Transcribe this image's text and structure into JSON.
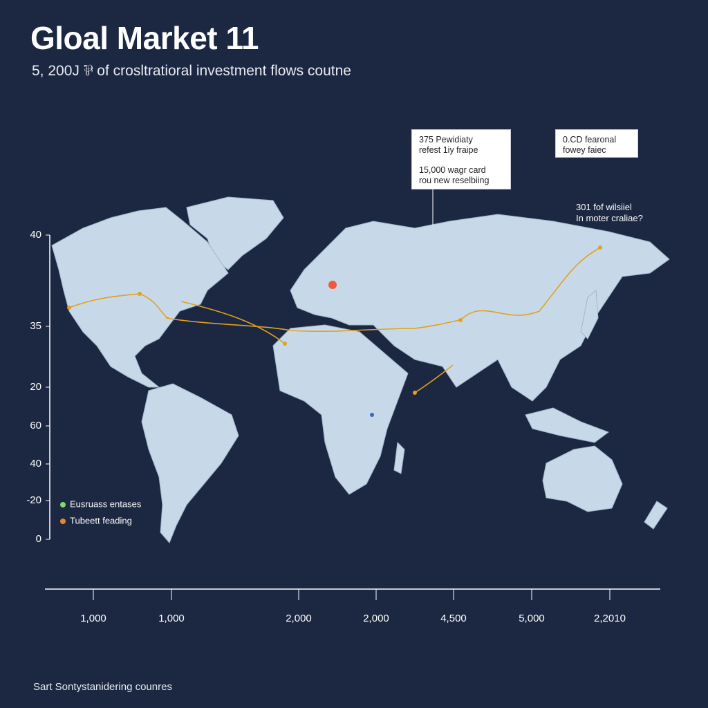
{
  "header": {
    "title": "Gloal Market 11",
    "subtitle": "5, 200J ⅌ of crosltratioral investment flows coutne"
  },
  "callouts": [
    {
      "lines": [
        "375 Pewidiaty",
        "refest 1iy fraipe",
        "15,000 wagr card",
        "rou new reselbiing"
      ]
    },
    {
      "lines": [
        "0.CD fearonal",
        "fowey faiec"
      ]
    }
  ],
  "annotation": [
    "301 fof wilsiiel",
    "In moter craliae?"
  ],
  "y_axis_labels": [
    "40",
    "35",
    "20",
    "60",
    "40",
    "-20",
    "0"
  ],
  "x_axis_labels": [
    "1,000",
    "1,000",
    "2,000",
    "2,000",
    "4,500",
    "5,000",
    "2,2010"
  ],
  "legend": [
    {
      "label": "Eusruass entases",
      "color": "#7ddc6a"
    },
    {
      "label": "Tubeett feading",
      "color": "#e8843a"
    }
  ],
  "footer": "Sart Sontystanidering counres"
}
